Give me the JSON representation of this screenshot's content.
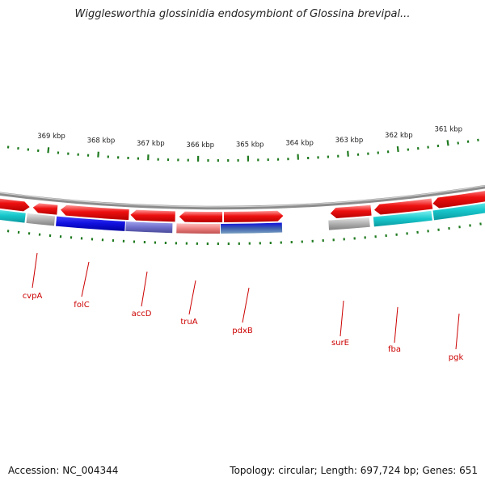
{
  "title": "Wigglesworthia glossinidia endosymbiont of Glossina brevipal...",
  "footer": {
    "accession": "Accession: NC_004344",
    "summary": "Topology: circular; Length: 697,724 bp; Genes: 651"
  },
  "kbp_labels": [
    {
      "text": "369 kbp",
      "kbp": 369
    },
    {
      "text": "368 kbp",
      "kbp": 368
    },
    {
      "text": "367 kbp",
      "kbp": 367
    },
    {
      "text": "366 kbp",
      "kbp": 366
    },
    {
      "text": "365 kbp",
      "kbp": 365
    },
    {
      "text": "364 kbp",
      "kbp": 364
    },
    {
      "text": "363 kbp",
      "kbp": 363
    },
    {
      "text": "362 kbp",
      "kbp": 362
    },
    {
      "text": "361 kbp",
      "kbp": 361
    }
  ],
  "gene_labels": [
    "cvpA",
    "folC",
    "accD",
    "truA",
    "pdxB",
    "surE",
    "fba",
    "pgk"
  ],
  "colors": {
    "backbone": "#8c8c8c",
    "tick": "#1f7a1f",
    "label": "#cc0000",
    "forward_gene": "#ee1111",
    "cyan": "#18c8cc",
    "blue": "#1010dd",
    "slate": "#7070cc",
    "pink": "#ee8080",
    "gray": "#b0b0b0"
  }
}
